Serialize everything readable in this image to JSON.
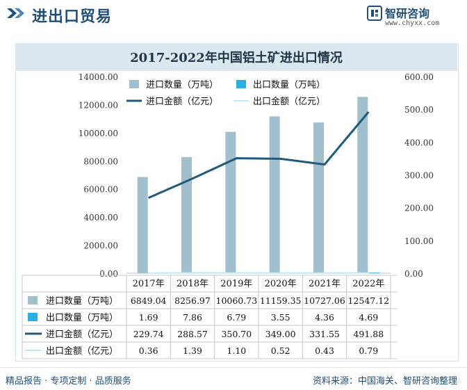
{
  "header": {
    "title": "进出口贸易",
    "brand_name": "智研咨询",
    "brand_url": "www.chyxx.com"
  },
  "footer": {
    "left_text": "精品报告 · 专项定制 · 品质服务",
    "source_text": "资料来源：中国海关、智研咨询整理"
  },
  "colors": {
    "import_qty": "#a2bfcd",
    "export_qty": "#2bb0e6",
    "import_amt": "#1f5a7a",
    "export_amt": "#bfe6f5",
    "title_band": "#dce8f0",
    "grid": "#dcdcdc"
  },
  "chart_data": {
    "type": "bar",
    "title": "2017-2022年中国铝土矿进出口情况",
    "categories": [
      "2017年",
      "2018年",
      "2019年",
      "2020年",
      "2021年",
      "2022年"
    ],
    "y_left": {
      "min": 0,
      "max": 14000,
      "step": 2000,
      "tick_labels": [
        "0.00",
        "2000.00",
        "4000.00",
        "6000.00",
        "8000.00",
        "10000.00",
        "12000.00",
        "14000.00"
      ]
    },
    "y_right": {
      "min": 0,
      "max": 600,
      "step": 100,
      "tick_labels": [
        "0.00",
        "100.00",
        "200.00",
        "300.00",
        "400.00",
        "500.00",
        "600.00"
      ]
    },
    "legend_position": "top",
    "series": [
      {
        "name": "进口数量（万吨）",
        "kind": "bar",
        "axis": "left",
        "values": [
          6849.04,
          8256.97,
          10060.73,
          11159.35,
          10727.06,
          12547.12
        ],
        "labels": [
          "6849.04",
          "8256.97",
          "10060.73",
          "11159.35",
          "10727.06",
          "12547.12"
        ]
      },
      {
        "name": "出口数量（万吨）",
        "kind": "bar",
        "axis": "left",
        "values": [
          1.69,
          7.86,
          6.79,
          3.55,
          4.36,
          4.69
        ],
        "labels": [
          "1.69",
          "7.86",
          "6.79",
          "3.55",
          "4.36",
          "4.69"
        ]
      },
      {
        "name": "进口金额（亿元）",
        "kind": "line",
        "axis": "right",
        "values": [
          229.74,
          288.57,
          350.7,
          349.0,
          331.55,
          491.88
        ],
        "labels": [
          "229.74",
          "288.57",
          "350.70",
          "349.00",
          "331.55",
          "491.88"
        ]
      },
      {
        "name": "出口金额（亿元）",
        "kind": "line",
        "axis": "right",
        "values": [
          0.36,
          1.39,
          1.1,
          0.52,
          0.43,
          0.79
        ],
        "labels": [
          "0.36",
          "1.39",
          "1.10",
          "0.52",
          "0.43",
          "0.79"
        ]
      }
    ]
  }
}
